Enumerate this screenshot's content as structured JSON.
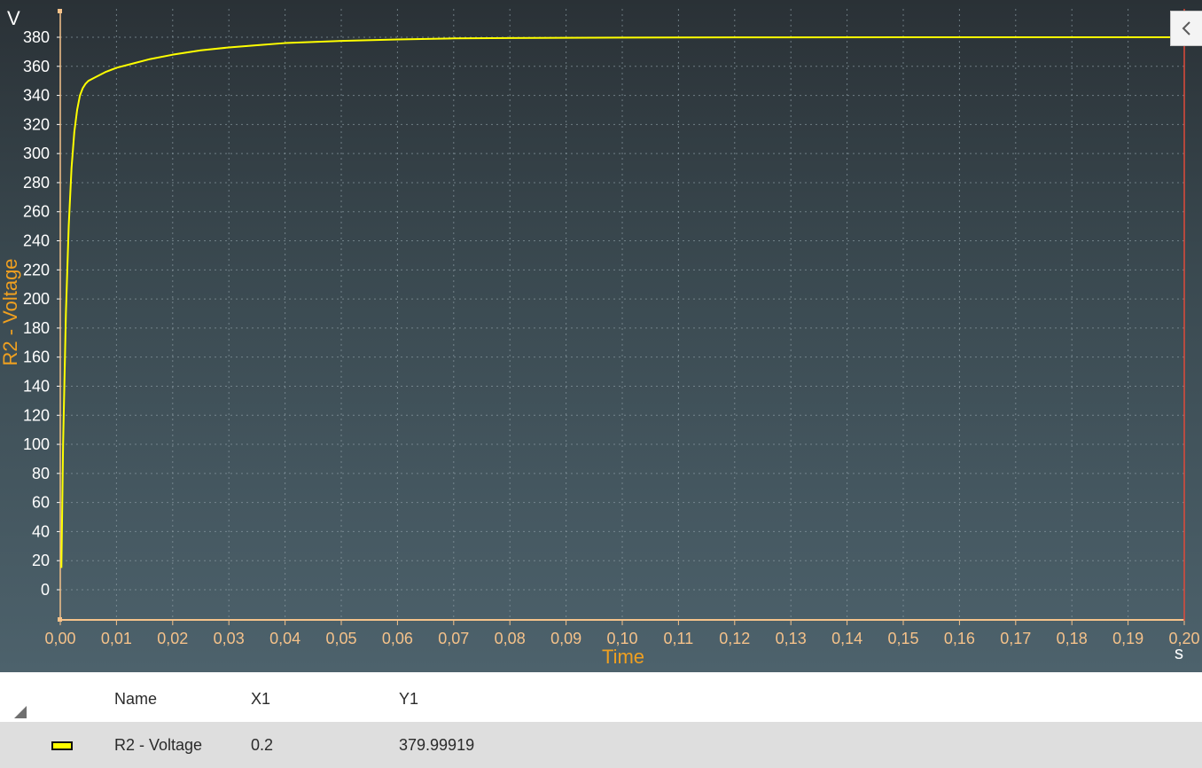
{
  "chart_data": {
    "type": "line",
    "xlabel": "Time",
    "x_unit": "s",
    "ylabel": "R2 - Voltage",
    "y_unit": "V",
    "xlim": [
      0,
      0.2
    ],
    "ylim": [
      -20,
      390
    ],
    "x_ticks": [
      "0,00",
      "0,01",
      "0,02",
      "0,03",
      "0,04",
      "0,05",
      "0,06",
      "0,07",
      "0,08",
      "0,09",
      "0,10",
      "0,11",
      "0,12",
      "0,13",
      "0,14",
      "0,15",
      "0,16",
      "0,17",
      "0,18",
      "0,19",
      "0,20"
    ],
    "y_ticks": [
      "0",
      "20",
      "40",
      "60",
      "80",
      "100",
      "120",
      "140",
      "160",
      "180",
      "200",
      "220",
      "240",
      "260",
      "280",
      "300",
      "320",
      "340",
      "360",
      "380"
    ],
    "grid": true,
    "colors": {
      "line": "#ffff00",
      "axis_text": "#f5c28a",
      "axis_title": "#f0a020",
      "grid": "#8a9aa2",
      "cursor": "#e04a3a"
    },
    "series": [
      {
        "name": "R2 - Voltage",
        "x": [
          0.0002,
          0.0005,
          0.001,
          0.0015,
          0.002,
          0.0025,
          0.003,
          0.0035,
          0.004,
          0.0045,
          0.005,
          0.006,
          0.008,
          0.01,
          0.013,
          0.016,
          0.02,
          0.025,
          0.03,
          0.035,
          0.04,
          0.05,
          0.06,
          0.07,
          0.08,
          0.1,
          0.12,
          0.15,
          0.2
        ],
        "y": [
          15,
          100,
          190,
          250,
          290,
          315,
          330,
          340,
          345,
          348,
          350,
          352,
          356,
          359,
          362,
          365,
          368,
          371,
          373,
          374.5,
          376,
          377.5,
          378.5,
          379.2,
          379.5,
          379.8,
          379.9,
          380,
          380
        ]
      }
    ]
  },
  "chart": {
    "y_unit_label": "V",
    "y_axis_title": "R2 - Voltage",
    "x_unit_label": "s",
    "x_axis_title": "Time"
  },
  "collapse_button": {
    "icon": "chevron-left-icon"
  },
  "table": {
    "headers": {
      "name": "Name",
      "x1": "X1",
      "y1": "Y1"
    },
    "rows": [
      {
        "name": "R2 - Voltage",
        "x1": "0.2",
        "y1": "379.99919",
        "swatch_color": "#ffff00"
      }
    ]
  }
}
